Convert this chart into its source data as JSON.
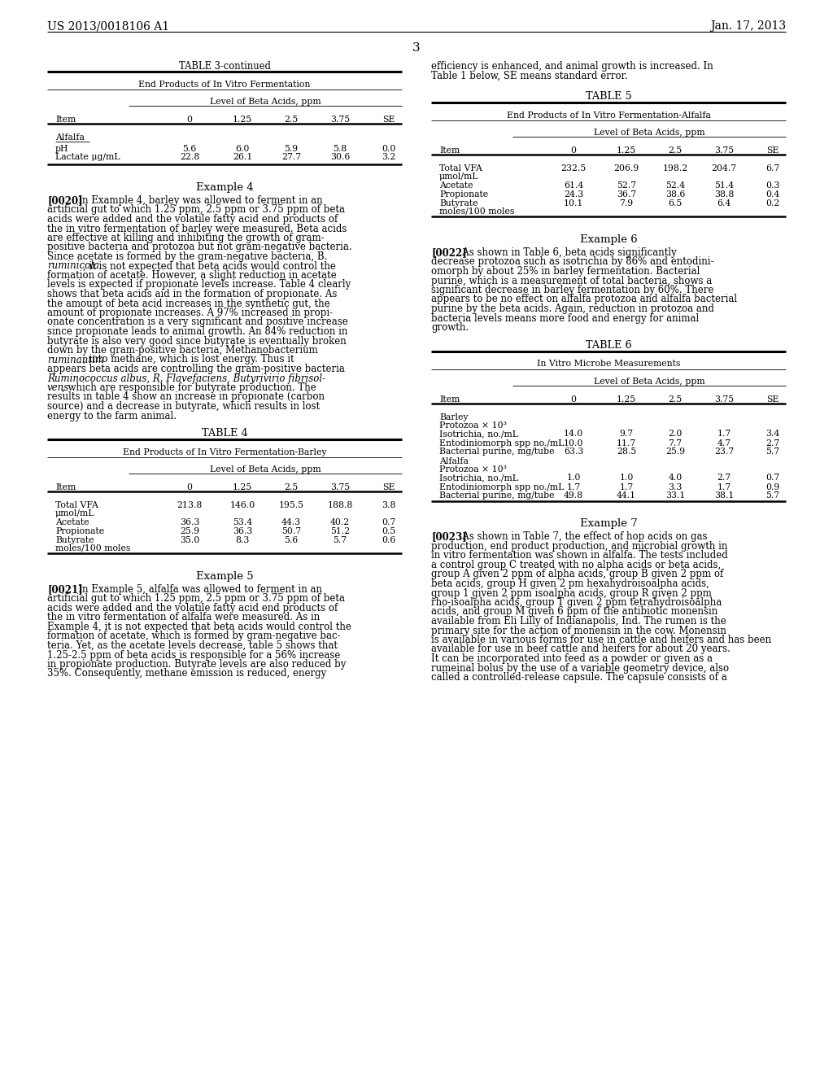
{
  "header_left": "US 2013/0018106 A1",
  "header_right": "Jan. 17, 2013",
  "page_number": "3",
  "bg_color": "#ffffff",
  "table3_title": "TABLE 3-continued",
  "table3_subtitle": "End Products of In Vitro Fermentation",
  "table3_subheader": "Level of Beta Acids, ppm",
  "table3_cols": [
    "Item",
    "0",
    "1.25",
    "2.5",
    "3.75",
    "SE"
  ],
  "table3_section": "Alfalfa",
  "table3_rows": [
    [
      "pH",
      "5.6",
      "6.0",
      "5.9",
      "5.8",
      "0.0"
    ],
    [
      "Lactate μg/mL",
      "22.8",
      "26.1",
      "27.7",
      "30.6",
      "3.2"
    ]
  ],
  "example4_title": "Example 4",
  "table4_title": "TABLE 4",
  "table4_subtitle": "End Products of In Vitro Fermentation-Barley",
  "table4_subheader": "Level of Beta Acids, ppm",
  "table4_cols": [
    "Item",
    "0",
    "1.25",
    "2.5",
    "3.75",
    "SE"
  ],
  "table4_rows": [
    [
      "Total VFA\nμmol/mL",
      "213.8",
      "146.0",
      "195.5",
      "188.8",
      "3.8"
    ],
    [
      "Acetate",
      "36.3",
      "53.4",
      "44.3",
      "40.2",
      "0.7"
    ],
    [
      "Propionate",
      "25.9",
      "36.3",
      "50.7",
      "51.2",
      "0.5"
    ],
    [
      "Butyrate\nmoles/100 moles",
      "35.0",
      "8.3",
      "5.6",
      "5.7",
      "0.6"
    ]
  ],
  "example5_title": "Example 5",
  "table5_title": "TABLE 5",
  "table5_subtitle": "End Products of In Vitro Fermentation-Alfalfa",
  "table5_subheader": "Level of Beta Acids, ppm",
  "table5_cols": [
    "Item",
    "0",
    "1.25",
    "2.5",
    "3.75",
    "SE"
  ],
  "table5_rows": [
    [
      "Total VFA\nμmol/mL",
      "232.5",
      "206.9",
      "198.2",
      "204.7",
      "6.7"
    ],
    [
      "Acetate",
      "61.4",
      "52.7",
      "52.4",
      "51.4",
      "0.3"
    ],
    [
      "Propionate",
      "24.3",
      "36.7",
      "38.6",
      "38.8",
      "0.4"
    ],
    [
      "Butyrate\nmoles/100 moles",
      "10.1",
      "7.9",
      "6.5",
      "6.4",
      "0.2"
    ]
  ],
  "example6_title": "Example 6",
  "table6_title": "TABLE 6",
  "table6_subtitle": "In Vitro Microbe Measurements",
  "table6_subheader": "Level of Beta Acids, ppm",
  "table6_cols": [
    "Item",
    "0",
    "1.25",
    "2.5",
    "3.75",
    "SE"
  ],
  "table6_rows1": [
    [
      "Isotrichia, no./mL",
      "14.0",
      "9.7",
      "2.0",
      "1.7",
      "3.4"
    ],
    [
      "Entodiniomorph spp no./mL",
      "10.0",
      "11.7",
      "7.7",
      "4.7",
      "2.7"
    ],
    [
      "Bacterial purine, mg/tube",
      "63.3",
      "28.5",
      "25.9",
      "23.7",
      "5.7"
    ]
  ],
  "table6_rows2": [
    [
      "Isotrichia, no./mL",
      "1.0",
      "1.0",
      "4.0",
      "2.7",
      "0.7"
    ],
    [
      "Entodiniomorph spp no./mL",
      "1.7",
      "1.7",
      "3.3",
      "1.7",
      "0.9"
    ],
    [
      "Bacterial purine, mg/tube",
      "49.8",
      "44.1",
      "33.1",
      "38.1",
      "5.7"
    ]
  ],
  "example7_title": "Example 7"
}
